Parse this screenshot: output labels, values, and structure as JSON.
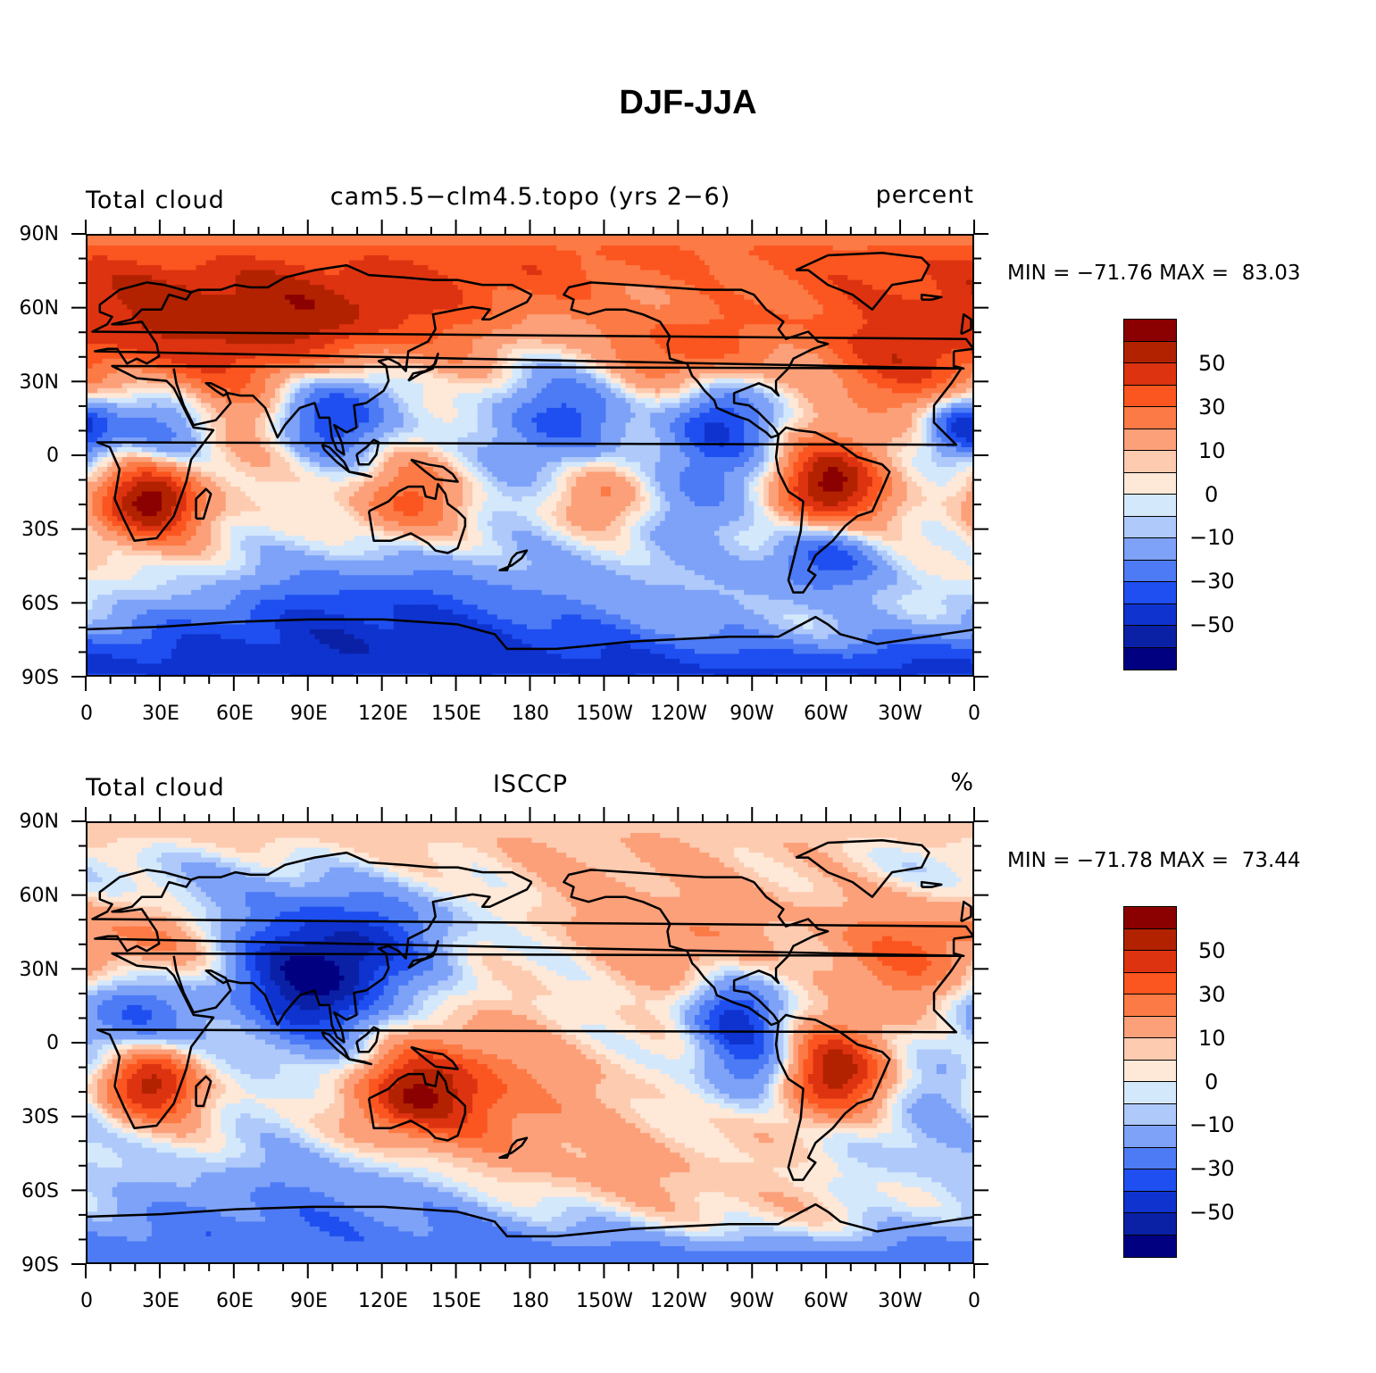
{
  "title": "DJF-JJA",
  "chart_data": [
    {
      "type": "heatmap",
      "left_title": "Total cloud",
      "center_title": "cam5.5−clm4.5.topo (yrs 2−6)",
      "units": "percent",
      "stats_text": "MIN = −71.76 MAX =  83.03",
      "min": -71.76,
      "max": 83.03,
      "x_tick_labels": [
        "0",
        "30E",
        "60E",
        "90E",
        "120E",
        "150E",
        "180",
        "150W",
        "120W",
        "90W",
        "60W",
        "30W",
        "0"
      ],
      "y_tick_labels": [
        "90N",
        "60N",
        "30N",
        "0",
        "30S",
        "60S",
        "90S"
      ],
      "xlim": [
        0,
        360
      ],
      "ylim": [
        -90,
        90
      ]
    },
    {
      "type": "heatmap",
      "left_title": "Total cloud",
      "center_title": "ISCCP",
      "units": "%",
      "stats_text": "MIN = −71.78 MAX =  73.44",
      "min": -71.78,
      "max": 73.44,
      "x_tick_labels": [
        "0",
        "30E",
        "60E",
        "90E",
        "120E",
        "150E",
        "180",
        "150W",
        "120W",
        "90W",
        "60W",
        "30W",
        "0"
      ],
      "y_tick_labels": [
        "90N",
        "60N",
        "30N",
        "0",
        "30S",
        "60S",
        "90S"
      ],
      "xlim": [
        0,
        360
      ],
      "ylim": [
        -90,
        90
      ]
    }
  ],
  "colorbar": {
    "colors": [
      "#8b0000",
      "#b22200",
      "#dd3311",
      "#fb5520",
      "#fc7a45",
      "#fca07a",
      "#fdcbb0",
      "#fee8d8",
      "#d4e8fc",
      "#aec9fa",
      "#7da2f8",
      "#4d7bf5",
      "#1f4ff0",
      "#0f33cf",
      "#0a21a6",
      "#000080"
    ],
    "labels": [
      "50",
      "30",
      "10",
      "0",
      "−10",
      "−30",
      "−50"
    ]
  },
  "map_data": [
    {
      "blobs": [
        {
          "lon": 50,
          "lat": 45,
          "r": 55,
          "v": 40
        },
        {
          "lon": 90,
          "lat": 55,
          "r": 40,
          "v": 25
        },
        {
          "lon": 25,
          "lat": -17,
          "r": 20,
          "v": 65
        },
        {
          "lon": 300,
          "lat": -12,
          "r": 22,
          "v": 65
        },
        {
          "lon": 240,
          "lat": 42,
          "r": 25,
          "v": 40
        },
        {
          "lon": 325,
          "lat": 40,
          "r": 30,
          "v": 35
        },
        {
          "lon": 130,
          "lat": -18,
          "r": 22,
          "v": 35
        },
        {
          "lon": 210,
          "lat": -15,
          "r": 22,
          "v": 30
        },
        {
          "lon": 100,
          "lat": 20,
          "r": 25,
          "v": -60
        },
        {
          "lon": 30,
          "lat": 12,
          "r": 25,
          "v": -45
        },
        {
          "lon": 355,
          "lat": 12,
          "r": 15,
          "v": -55
        },
        {
          "lon": 190,
          "lat": 16,
          "r": 28,
          "v": -35
        },
        {
          "lon": 255,
          "lat": 15,
          "r": 22,
          "v": -40
        },
        {
          "lon": 110,
          "lat": -75,
          "r": 40,
          "v": -40
        },
        {
          "lon": 300,
          "lat": -40,
          "r": 18,
          "v": -35
        },
        {
          "lon": 250,
          "lat": -15,
          "r": 25,
          "v": -20
        },
        {
          "lon": 160,
          "lat": 40,
          "r": 30,
          "v": 12
        },
        {
          "lon": 200,
          "lat": -55,
          "r": 60,
          "v": -10
        }
      ]
    },
    {
      "blobs": [
        {
          "lon": 25,
          "lat": -15,
          "r": 20,
          "v": 60
        },
        {
          "lon": 302,
          "lat": -12,
          "r": 22,
          "v": 60
        },
        {
          "lon": 130,
          "lat": -20,
          "r": 22,
          "v": 50
        },
        {
          "lon": 90,
          "lat": 25,
          "r": 30,
          "v": -55
        },
        {
          "lon": 20,
          "lat": 12,
          "r": 25,
          "v": -40
        },
        {
          "lon": 110,
          "lat": 45,
          "r": 30,
          "v": -25
        },
        {
          "lon": 262,
          "lat": 12,
          "r": 18,
          "v": -40
        },
        {
          "lon": 270,
          "lat": -10,
          "r": 20,
          "v": -30
        },
        {
          "lon": 330,
          "lat": 35,
          "r": 28,
          "v": 30
        },
        {
          "lon": 240,
          "lat": 40,
          "r": 25,
          "v": 20
        },
        {
          "lon": 30,
          "lat": 38,
          "r": 25,
          "v": 30
        },
        {
          "lon": 160,
          "lat": -15,
          "r": 30,
          "v": 25
        },
        {
          "lon": 200,
          "lat": -55,
          "r": 60,
          "v": 12
        },
        {
          "lon": 100,
          "lat": -78,
          "r": 40,
          "v": -35
        },
        {
          "lon": 170,
          "lat": 80,
          "r": 40,
          "v": 15
        },
        {
          "lon": 340,
          "lat": -30,
          "r": 30,
          "v": -15
        },
        {
          "lon": 45,
          "lat": 65,
          "r": 30,
          "v": -10
        }
      ]
    }
  ]
}
